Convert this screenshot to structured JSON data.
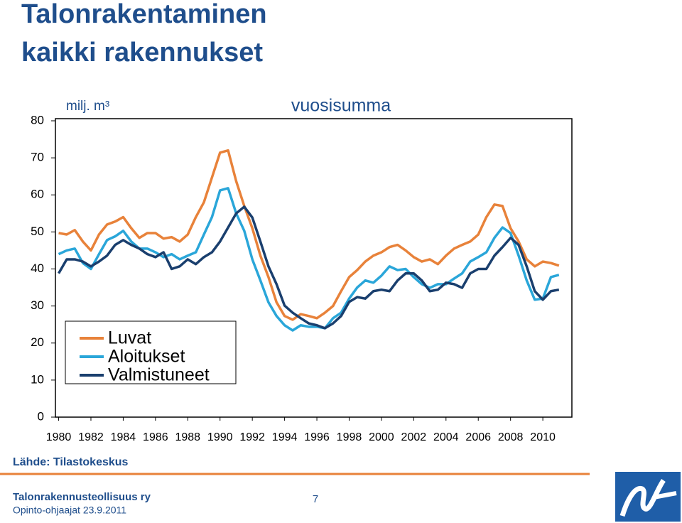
{
  "slide": {
    "title_lines": [
      "Talonrakentaminen",
      "kaikki rakennukset"
    ],
    "source": "Lähde: Tilastokeskus",
    "footer_org": "Talonrakennusteollisuus ry",
    "footer_event": "Opinto-ohjaajat 23.9.2011",
    "page_number": "7"
  },
  "chart_data": {
    "type": "line",
    "y_unit_label": "milj. m³",
    "subtitle": "vuosisumma",
    "x": [
      1980,
      1980.5,
      1981,
      1981.5,
      1982,
      1982.5,
      1983,
      1983.5,
      1984,
      1984.5,
      1985,
      1985.5,
      1986,
      1986.5,
      1987,
      1987.5,
      1988,
      1988.5,
      1989,
      1989.5,
      1990,
      1990.5,
      1991,
      1991.5,
      1992,
      1992.5,
      1993,
      1993.5,
      1994,
      1994.5,
      1995,
      1995.5,
      1996,
      1996.5,
      1997,
      1997.5,
      1998,
      1998.5,
      1999,
      1999.5,
      2000,
      2000.5,
      2001,
      2001.5,
      2002,
      2002.5,
      2003,
      2003.5,
      2004,
      2004.5,
      2005,
      2005.5,
      2006,
      2006.5,
      2007,
      2007.5,
      2008,
      2008.5,
      2009,
      2009.5,
      2010,
      2010.5,
      2011
    ],
    "series": [
      {
        "name": "Luvat",
        "color": "#e8823a",
        "values": [
          49.7,
          49.3,
          50.5,
          47.4,
          45,
          49.3,
          52,
          52.8,
          54,
          51,
          48.4,
          49.7,
          49.7,
          48.2,
          48.6,
          47.4,
          49.3,
          54,
          58,
          64.7,
          71.4,
          72,
          63.7,
          57,
          51,
          43.6,
          37.8,
          31,
          27.3,
          26.3,
          27.8,
          27.3,
          26.7,
          28.2,
          30,
          34,
          37.8,
          39.7,
          42,
          43.6,
          44.5,
          45.9,
          46.5,
          45,
          43.2,
          42,
          42.6,
          41.3,
          43.6,
          45.5,
          46.5,
          47.4,
          49.3,
          54,
          57.4,
          57,
          51,
          47.4,
          42.6,
          40.7,
          42,
          41.6,
          40.9
        ]
      },
      {
        "name": "Aloitukset",
        "color": "#2aa6d9",
        "values": [
          44,
          45,
          45.5,
          41.6,
          40,
          44,
          47.8,
          48.8,
          50.3,
          47.4,
          45.5,
          45.5,
          44.5,
          43.2,
          44,
          42.6,
          43.6,
          44.5,
          49.3,
          54,
          61.2,
          61.8,
          55,
          50.3,
          42.6,
          36.9,
          31,
          27.3,
          24.8,
          23.4,
          24.8,
          24.4,
          24.4,
          24,
          26.7,
          28.2,
          32,
          35,
          36.9,
          36.3,
          38.2,
          40.7,
          39.7,
          40,
          37.8,
          35.9,
          34.9,
          35.9,
          35.9,
          37.4,
          38.8,
          42,
          43.2,
          44.5,
          48.4,
          51.2,
          49.7,
          43.6,
          36.9,
          31.7,
          32,
          37.8,
          38.4
        ]
      },
      {
        "name": "Valmistuneet",
        "color": "#1a3f6e",
        "values": [
          38.8,
          42.6,
          42.6,
          42,
          40.7,
          42,
          43.6,
          46.5,
          47.8,
          46.5,
          45.5,
          44,
          43.2,
          44.5,
          40,
          40.7,
          42.6,
          41.3,
          43.2,
          44.5,
          47.4,
          51.2,
          55,
          56.8,
          53.9,
          47.4,
          40.7,
          35.9,
          30.1,
          28.2,
          26.7,
          25.3,
          24.8,
          24,
          25.3,
          27.3,
          31.1,
          32.4,
          32,
          34,
          34.4,
          34,
          36.9,
          38.8,
          38.8,
          36.9,
          34,
          34.4,
          36.3,
          35.9,
          34.9,
          38.8,
          40,
          40,
          43.6,
          45.9,
          48.4,
          46.5,
          40.7,
          34,
          31.7,
          34,
          34.4
        ]
      }
    ],
    "xlim": [
      1979.8,
      2011.8
    ],
    "xticks": [
      1980,
      1982,
      1984,
      1986,
      1988,
      1990,
      1992,
      1994,
      1996,
      1998,
      2000,
      2002,
      2004,
      2006,
      2008,
      2010
    ],
    "ylim": [
      0,
      80
    ],
    "yticks": [
      0,
      10,
      20,
      30,
      40,
      50,
      60,
      70,
      80
    ],
    "grid": false,
    "legend": "lower left"
  }
}
